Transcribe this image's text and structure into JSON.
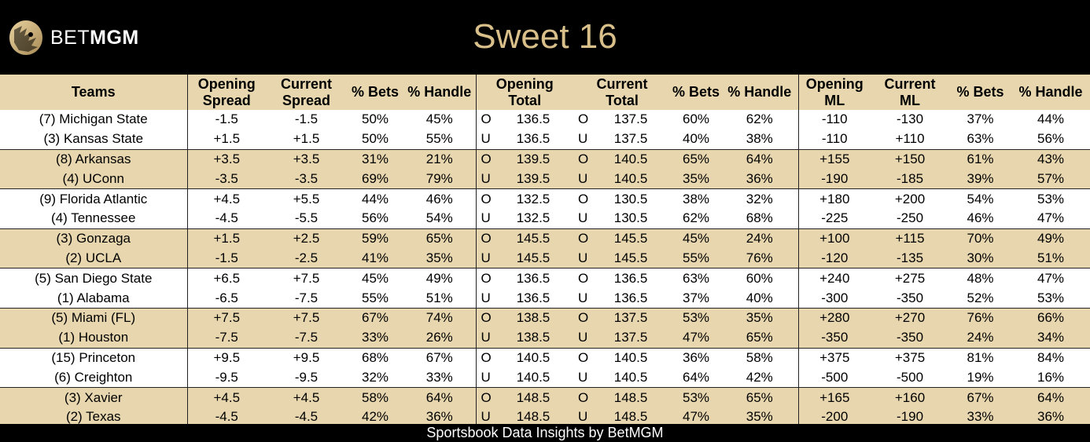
{
  "brand": {
    "bet": "BET",
    "mgm": "MGM"
  },
  "title": "Sweet 16",
  "footer": "Sportsbook Data Insights by BetMGM",
  "colors": {
    "header_bg": "#000000",
    "band_tan": "#e8d7ae",
    "title_gold": "#d9c08b"
  },
  "columns": {
    "teams": "Teams",
    "opening_spread": [
      "Opening",
      "Spread"
    ],
    "current_spread": [
      "Current",
      "Spread"
    ],
    "pct_bets": "% Bets",
    "pct_handle": "% Handle",
    "opening_total": [
      "Opening",
      "Total"
    ],
    "current_total": [
      "Current",
      "Total"
    ],
    "opening_ml": [
      "Opening",
      "ML"
    ],
    "current_ml": [
      "Current",
      "ML"
    ]
  },
  "rows": [
    {
      "team": "(7) Michigan State",
      "os": "-1.5",
      "cs": "-1.5",
      "sb": "50%",
      "sh": "45%",
      "oou": "O",
      "ot": "136.5",
      "cou": "O",
      "ct": "137.5",
      "tb": "60%",
      "th": "62%",
      "oml": "-110",
      "cml": "-130",
      "mb": "37%",
      "mh": "44%"
    },
    {
      "team": "(3) Kansas State",
      "os": "+1.5",
      "cs": "+1.5",
      "sb": "50%",
      "sh": "55%",
      "oou": "U",
      "ot": "136.5",
      "cou": "U",
      "ct": "137.5",
      "tb": "40%",
      "th": "38%",
      "oml": "-110",
      "cml": "+110",
      "mb": "63%",
      "mh": "56%"
    },
    {
      "team": "(8) Arkansas",
      "os": "+3.5",
      "cs": "+3.5",
      "sb": "31%",
      "sh": "21%",
      "oou": "O",
      "ot": "139.5",
      "cou": "O",
      "ct": "140.5",
      "tb": "65%",
      "th": "64%",
      "oml": "+155",
      "cml": "+150",
      "mb": "61%",
      "mh": "43%"
    },
    {
      "team": "(4) UConn",
      "os": "-3.5",
      "cs": "-3.5",
      "sb": "69%",
      "sh": "79%",
      "oou": "U",
      "ot": "139.5",
      "cou": "U",
      "ct": "140.5",
      "tb": "35%",
      "th": "36%",
      "oml": "-190",
      "cml": "-185",
      "mb": "39%",
      "mh": "57%"
    },
    {
      "team": "(9) Florida Atlantic",
      "os": "+4.5",
      "cs": "+5.5",
      "sb": "44%",
      "sh": "46%",
      "oou": "O",
      "ot": "132.5",
      "cou": "O",
      "ct": "130.5",
      "tb": "38%",
      "th": "32%",
      "oml": "+180",
      "cml": "+200",
      "mb": "54%",
      "mh": "53%"
    },
    {
      "team": "(4) Tennessee",
      "os": "-4.5",
      "cs": "-5.5",
      "sb": "56%",
      "sh": "54%",
      "oou": "U",
      "ot": "132.5",
      "cou": "U",
      "ct": "130.5",
      "tb": "62%",
      "th": "68%",
      "oml": "-225",
      "cml": "-250",
      "mb": "46%",
      "mh": "47%"
    },
    {
      "team": "(3) Gonzaga",
      "os": "+1.5",
      "cs": "+2.5",
      "sb": "59%",
      "sh": "65%",
      "oou": "O",
      "ot": "145.5",
      "cou": "O",
      "ct": "145.5",
      "tb": "45%",
      "th": "24%",
      "oml": "+100",
      "cml": "+115",
      "mb": "70%",
      "mh": "49%"
    },
    {
      "team": "(2) UCLA",
      "os": "-1.5",
      "cs": "-2.5",
      "sb": "41%",
      "sh": "35%",
      "oou": "U",
      "ot": "145.5",
      "cou": "U",
      "ct": "145.5",
      "tb": "55%",
      "th": "76%",
      "oml": "-120",
      "cml": "-135",
      "mb": "30%",
      "mh": "51%"
    },
    {
      "team": "(5) San Diego State",
      "os": "+6.5",
      "cs": "+7.5",
      "sb": "45%",
      "sh": "49%",
      "oou": "O",
      "ot": "136.5",
      "cou": "O",
      "ct": "136.5",
      "tb": "63%",
      "th": "60%",
      "oml": "+240",
      "cml": "+275",
      "mb": "48%",
      "mh": "47%"
    },
    {
      "team": "(1) Alabama",
      "os": "-6.5",
      "cs": "-7.5",
      "sb": "55%",
      "sh": "51%",
      "oou": "U",
      "ot": "136.5",
      "cou": "U",
      "ct": "136.5",
      "tb": "37%",
      "th": "40%",
      "oml": "-300",
      "cml": "-350",
      "mb": "52%",
      "mh": "53%"
    },
    {
      "team": "(5) Miami (FL)",
      "os": "+7.5",
      "cs": "+7.5",
      "sb": "67%",
      "sh": "74%",
      "oou": "O",
      "ot": "138.5",
      "cou": "O",
      "ct": "137.5",
      "tb": "53%",
      "th": "35%",
      "oml": "+280",
      "cml": "+270",
      "mb": "76%",
      "mh": "66%"
    },
    {
      "team": "(1) Houston",
      "os": "-7.5",
      "cs": "-7.5",
      "sb": "33%",
      "sh": "26%",
      "oou": "U",
      "ot": "138.5",
      "cou": "U",
      "ct": "137.5",
      "tb": "47%",
      "th": "65%",
      "oml": "-350",
      "cml": "-350",
      "mb": "24%",
      "mh": "34%"
    },
    {
      "team": "(15) Princeton",
      "os": "+9.5",
      "cs": "+9.5",
      "sb": "68%",
      "sh": "67%",
      "oou": "O",
      "ot": "140.5",
      "cou": "O",
      "ct": "140.5",
      "tb": "36%",
      "th": "58%",
      "oml": "+375",
      "cml": "+375",
      "mb": "81%",
      "mh": "84%"
    },
    {
      "team": "(6) Creighton",
      "os": "-9.5",
      "cs": "-9.5",
      "sb": "32%",
      "sh": "33%",
      "oou": "U",
      "ot": "140.5",
      "cou": "U",
      "ct": "140.5",
      "tb": "64%",
      "th": "42%",
      "oml": "-500",
      "cml": "-500",
      "mb": "19%",
      "mh": "16%"
    },
    {
      "team": "(3) Xavier",
      "os": "+4.5",
      "cs": "+4.5",
      "sb": "58%",
      "sh": "64%",
      "oou": "O",
      "ot": "148.5",
      "cou": "O",
      "ct": "148.5",
      "tb": "53%",
      "th": "65%",
      "oml": "+165",
      "cml": "+160",
      "mb": "67%",
      "mh": "64%"
    },
    {
      "team": "(2) Texas",
      "os": "-4.5",
      "cs": "-4.5",
      "sb": "42%",
      "sh": "36%",
      "oou": "U",
      "ot": "148.5",
      "cou": "U",
      "ct": "148.5",
      "tb": "47%",
      "th": "35%",
      "oml": "-200",
      "cml": "-190",
      "mb": "33%",
      "mh": "36%"
    }
  ]
}
